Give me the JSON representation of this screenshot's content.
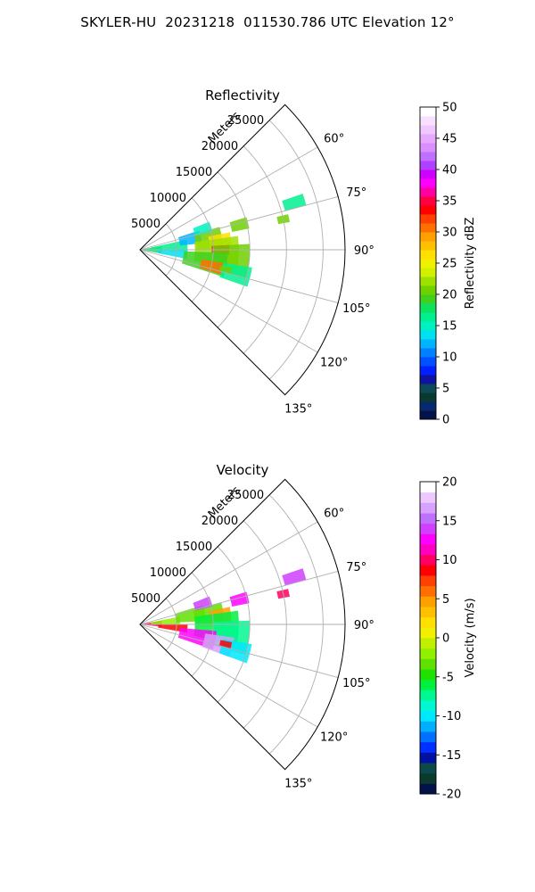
{
  "figure": {
    "title": "SKYLER-HU  20231218  011530.786 UTC Elevation 12°"
  },
  "chart_data": [
    {
      "type": "polar-sector",
      "title": "Reflectivity",
      "r_label": "Meters",
      "r_ticks": [
        5000,
        10000,
        15000,
        20000,
        25000
      ],
      "r_max": 28000,
      "theta_range_deg": [
        45,
        135
      ],
      "theta_ticks_deg": [
        60,
        75,
        90,
        105,
        120,
        135
      ],
      "grid": true,
      "colorbar": {
        "label": "Reflectivity dBZ",
        "min": 0,
        "max": 50,
        "ticks": [
          0,
          5,
          10,
          15,
          20,
          25,
          30,
          35,
          40,
          45,
          50
        ],
        "colors": [
          "#04124a",
          "#062a6e",
          "#0a3a2e",
          "#0c4a5a",
          "#1012a0",
          "#0020ff",
          "#0050ff",
          "#0080ff",
          "#00b4ff",
          "#00e0f0",
          "#00f0c0",
          "#00f090",
          "#10e060",
          "#40d020",
          "#70d000",
          "#a0e000",
          "#d0f000",
          "#f0f000",
          "#ffe000",
          "#ffc000",
          "#ffa000",
          "#ff7000",
          "#ff4000",
          "#ff0000",
          "#ff0040",
          "#ff00a0",
          "#ff00ff",
          "#d000ff",
          "#b040ff",
          "#c070ff",
          "#d890ff",
          "#e8a8ff",
          "#f0c8ff",
          "#f8e0ff",
          "#ffffff"
        ]
      },
      "echoes": [
        {
          "r": 1500,
          "theta": 90,
          "dr": 1500,
          "dtheta": 10,
          "value": 18
        },
        {
          "r": 4000,
          "theta": 85,
          "dr": 2500,
          "dtheta": 7,
          "value": 16
        },
        {
          "r": 4500,
          "theta": 95,
          "dr": 2000,
          "dtheta": 6,
          "value": 14
        },
        {
          "r": 7000,
          "theta": 78,
          "dr": 1500,
          "dtheta": 6,
          "value": 12
        },
        {
          "r": 9500,
          "theta": 82,
          "dr": 1800,
          "dtheta": 8,
          "value": 20
        },
        {
          "r": 11000,
          "theta": 84,
          "dr": 1500,
          "dtheta": 5,
          "value": 27
        },
        {
          "r": 10500,
          "theta": 92,
          "dr": 3000,
          "dtheta": 10,
          "value": 22
        },
        {
          "r": 11000,
          "theta": 90,
          "dr": 1200,
          "dtheta": 3,
          "value": 34
        },
        {
          "r": 12500,
          "theta": 96,
          "dr": 2500,
          "dtheta": 9,
          "value": 20
        },
        {
          "r": 9000,
          "theta": 100,
          "dr": 3000,
          "dtheta": 8,
          "value": 19
        },
        {
          "r": 10000,
          "theta": 103,
          "dr": 1500,
          "dtheta": 4,
          "value": 30
        },
        {
          "r": 13500,
          "theta": 104,
          "dr": 2000,
          "dtheta": 5,
          "value": 17
        },
        {
          "r": 9000,
          "theta": 72,
          "dr": 1200,
          "dtheta": 4,
          "value": 15
        },
        {
          "r": 14000,
          "theta": 76,
          "dr": 1200,
          "dtheta": 3,
          "value": 20
        },
        {
          "r": 22000,
          "theta": 73,
          "dr": 1500,
          "dtheta": 2,
          "value": 17
        },
        {
          "r": 20000,
          "theta": 78,
          "dr": 800,
          "dtheta": 1.5,
          "value": 21
        },
        {
          "r": 12000,
          "theta": 103,
          "dr": 800,
          "dtheta": 2,
          "value": 20
        }
      ]
    },
    {
      "type": "polar-sector",
      "title": "Velocity",
      "r_label": "Meters",
      "r_ticks": [
        5000,
        10000,
        15000,
        20000,
        25000
      ],
      "r_max": 28000,
      "theta_range_deg": [
        45,
        135
      ],
      "theta_ticks_deg": [
        60,
        75,
        90,
        105,
        120,
        135
      ],
      "grid": true,
      "colorbar": {
        "label": "Velocity (m/s)",
        "min": -20,
        "max": 20,
        "ticks": [
          -20,
          -15,
          -10,
          -5,
          0,
          5,
          10,
          15,
          20
        ],
        "colors": [
          "#04124a",
          "#0a3a2e",
          "#0c4a4a",
          "#0010a0",
          "#0030ff",
          "#0070ff",
          "#00b0ff",
          "#00e8ff",
          "#00f8d0",
          "#00f890",
          "#00f040",
          "#20e000",
          "#60e000",
          "#90f000",
          "#c0f000",
          "#f0f000",
          "#ffe000",
          "#ffc000",
          "#ffa000",
          "#ff7000",
          "#ff4000",
          "#ff0000",
          "#ff0060",
          "#ff00c0",
          "#ff00ff",
          "#d040ff",
          "#c070ff",
          "#d8a0ff",
          "#ecc8ff",
          "#ffffff"
        ]
      },
      "echoes": [
        {
          "r": 1500,
          "theta": 88,
          "dr": 1500,
          "dtheta": 8,
          "value": 10
        },
        {
          "r": 3500,
          "theta": 85,
          "dr": 2000,
          "dtheta": 6,
          "value": -2
        },
        {
          "r": 4500,
          "theta": 95,
          "dr": 2000,
          "dtheta": 5,
          "value": 8
        },
        {
          "r": 7000,
          "theta": 80,
          "dr": 2000,
          "dtheta": 7,
          "value": -3
        },
        {
          "r": 9500,
          "theta": 83,
          "dr": 2000,
          "dtheta": 8,
          "value": -4
        },
        {
          "r": 11000,
          "theta": 84,
          "dr": 1500,
          "dtheta": 5,
          "value": 4
        },
        {
          "r": 10500,
          "theta": 92,
          "dr": 3000,
          "dtheta": 10,
          "value": -6
        },
        {
          "r": 12500,
          "theta": 97,
          "dr": 2500,
          "dtheta": 9,
          "value": -8
        },
        {
          "r": 8000,
          "theta": 102,
          "dr": 2500,
          "dtheta": 7,
          "value": 12
        },
        {
          "r": 11000,
          "theta": 104,
          "dr": 2000,
          "dtheta": 6,
          "value": 16
        },
        {
          "r": 13500,
          "theta": 105,
          "dr": 2000,
          "dtheta": 5,
          "value": -10
        },
        {
          "r": 9000,
          "theta": 72,
          "dr": 1200,
          "dtheta": 4,
          "value": 14
        },
        {
          "r": 14000,
          "theta": 76,
          "dr": 1200,
          "dtheta": 3,
          "value": 12
        },
        {
          "r": 22000,
          "theta": 73,
          "dr": 1500,
          "dtheta": 2,
          "value": 14
        },
        {
          "r": 20000,
          "theta": 78,
          "dr": 800,
          "dtheta": 1.5,
          "value": 10
        },
        {
          "r": 12000,
          "theta": 103,
          "dr": 800,
          "dtheta": 2,
          "value": 8
        }
      ]
    }
  ]
}
